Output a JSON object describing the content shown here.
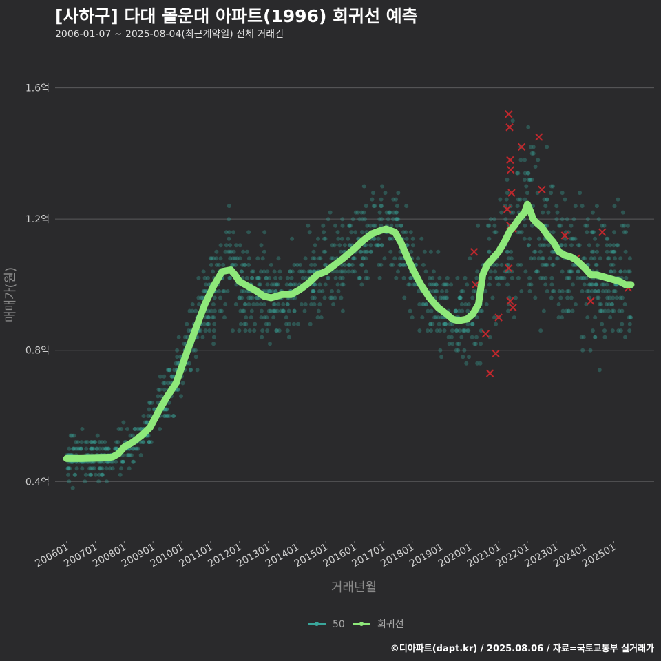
{
  "header": {
    "title": "[사하구] 다대 몰운대 아파트(1996) 회귀선 예측",
    "subtitle": "2006-01-07 ~ 2025-08-04(최근계약일) 전체 거래건"
  },
  "footer": "©디아파트(dapt.kr) / 2025.08.06 / 자료=국토교통부 실거래가",
  "colors": {
    "background": "#2a2a2c",
    "grid": "#5a5a5c",
    "points": "#3aa69b",
    "regression": "#8ee87a",
    "highlight": "#c0282d"
  },
  "chart_data": {
    "type": "scatter",
    "title": "[사하구] 다대 몰운대 아파트(1996) 회귀선 예측",
    "xlabel": "거래년월",
    "ylabel": "매매가(원)",
    "xlim": [
      2005.6,
      2026.4
    ],
    "ylim": [
      0.22,
      1.7
    ],
    "x_ticks": [
      {
        "value": 2006.0,
        "label": "200601"
      },
      {
        "value": 2007.0,
        "label": "200701"
      },
      {
        "value": 2008.0,
        "label": "200801"
      },
      {
        "value": 2009.0,
        "label": "200901"
      },
      {
        "value": 2010.0,
        "label": "201001"
      },
      {
        "value": 2011.0,
        "label": "201101"
      },
      {
        "value": 2012.0,
        "label": "201201"
      },
      {
        "value": 2013.0,
        "label": "201301"
      },
      {
        "value": 2014.0,
        "label": "201401"
      },
      {
        "value": 2015.0,
        "label": "201501"
      },
      {
        "value": 2016.0,
        "label": "201601"
      },
      {
        "value": 2017.0,
        "label": "201701"
      },
      {
        "value": 2018.0,
        "label": "201801"
      },
      {
        "value": 2019.0,
        "label": "201901"
      },
      {
        "value": 2020.0,
        "label": "202001"
      },
      {
        "value": 2021.0,
        "label": "202101"
      },
      {
        "value": 2022.0,
        "label": "202201"
      },
      {
        "value": 2023.0,
        "label": "202301"
      },
      {
        "value": 2024.0,
        "label": "202401"
      },
      {
        "value": 2025.0,
        "label": "202501"
      }
    ],
    "y_ticks": [
      {
        "value": 0.4,
        "label": "0.4억"
      },
      {
        "value": 0.8,
        "label": "0.8억"
      },
      {
        "value": 1.2,
        "label": "1.2억"
      },
      {
        "value": 1.6,
        "label": "1.6억"
      }
    ],
    "legend": [
      "50",
      "회귀선"
    ],
    "legend_position": "bottom",
    "series": [
      {
        "name": "회귀선",
        "type": "line",
        "x": [
          2006.0,
          2006.5,
          2007.0,
          2007.4,
          2007.6,
          2007.8,
          2008.0,
          2008.3,
          2008.6,
          2008.9,
          2009.2,
          2009.5,
          2009.8,
          2010.2,
          2010.5,
          2010.8,
          2011.1,
          2011.4,
          2011.7,
          2011.85,
          2012.0,
          2012.3,
          2012.6,
          2012.85,
          2013.1,
          2013.3,
          2013.5,
          2013.8,
          2014.1,
          2014.4,
          2014.7,
          2015.0,
          2015.3,
          2015.6,
          2016.0,
          2016.3,
          2016.6,
          2016.9,
          2017.1,
          2017.4,
          2017.6,
          2017.8,
          2018.0,
          2018.3,
          2018.6,
          2018.9,
          2019.2,
          2019.4,
          2019.6,
          2019.9,
          2020.1,
          2020.3,
          2020.45,
          2020.6,
          2020.8,
          2021.0,
          2021.2,
          2021.4,
          2021.55,
          2021.7,
          2021.9,
          2022.0,
          2022.1,
          2022.2,
          2022.3,
          2022.5,
          2022.7,
          2022.9,
          2023.1,
          2023.3,
          2023.5,
          2023.7,
          2024.0,
          2024.2,
          2024.4,
          2024.6,
          2024.8,
          2025.0,
          2025.2,
          2025.4,
          2025.6
        ],
        "y": [
          0.47,
          0.47,
          0.471,
          0.472,
          0.475,
          0.485,
          0.505,
          0.52,
          0.54,
          0.565,
          0.615,
          0.66,
          0.7,
          0.8,
          0.87,
          0.94,
          0.995,
          1.04,
          1.045,
          1.03,
          1.01,
          0.995,
          0.98,
          0.965,
          0.96,
          0.965,
          0.97,
          0.97,
          0.985,
          1.005,
          1.03,
          1.04,
          1.06,
          1.08,
          1.11,
          1.135,
          1.155,
          1.165,
          1.17,
          1.16,
          1.13,
          1.09,
          1.05,
          1.0,
          0.96,
          0.93,
          0.91,
          0.895,
          0.89,
          0.895,
          0.91,
          0.94,
          1.03,
          1.06,
          1.08,
          1.1,
          1.13,
          1.165,
          1.18,
          1.2,
          1.22,
          1.245,
          1.225,
          1.2,
          1.19,
          1.175,
          1.15,
          1.13,
          1.1,
          1.09,
          1.085,
          1.075,
          1.05,
          1.03,
          1.03,
          1.025,
          1.02,
          1.015,
          1.01,
          1.0,
          1.0
        ]
      },
      {
        "name": "50",
        "type": "scatter",
        "note": "dense cloud of transactions scattered around the regression line"
      }
    ],
    "highlighted_points": [
      {
        "x": 2020.15,
        "y": 1.1
      },
      {
        "x": 2020.2,
        "y": 1.0
      },
      {
        "x": 2020.55,
        "y": 0.85
      },
      {
        "x": 2020.7,
        "y": 0.73
      },
      {
        "x": 2020.9,
        "y": 0.79
      },
      {
        "x": 2021.0,
        "y": 0.9
      },
      {
        "x": 2021.35,
        "y": 1.52
      },
      {
        "x": 2021.38,
        "y": 1.48
      },
      {
        "x": 2021.4,
        "y": 1.38
      },
      {
        "x": 2021.42,
        "y": 1.35
      },
      {
        "x": 2021.45,
        "y": 1.28
      },
      {
        "x": 2021.3,
        "y": 1.23
      },
      {
        "x": 2021.4,
        "y": 1.18
      },
      {
        "x": 2021.5,
        "y": 1.17
      },
      {
        "x": 2021.35,
        "y": 1.05
      },
      {
        "x": 2021.4,
        "y": 0.95
      },
      {
        "x": 2021.5,
        "y": 0.93
      },
      {
        "x": 2021.8,
        "y": 1.42
      },
      {
        "x": 2022.4,
        "y": 1.45
      },
      {
        "x": 2022.5,
        "y": 1.29
      },
      {
        "x": 2023.3,
        "y": 1.15
      },
      {
        "x": 2023.7,
        "y": 1.08
      },
      {
        "x": 2024.2,
        "y": 0.95
      },
      {
        "x": 2024.6,
        "y": 1.16
      },
      {
        "x": 2025.5,
        "y": 0.99
      }
    ]
  }
}
